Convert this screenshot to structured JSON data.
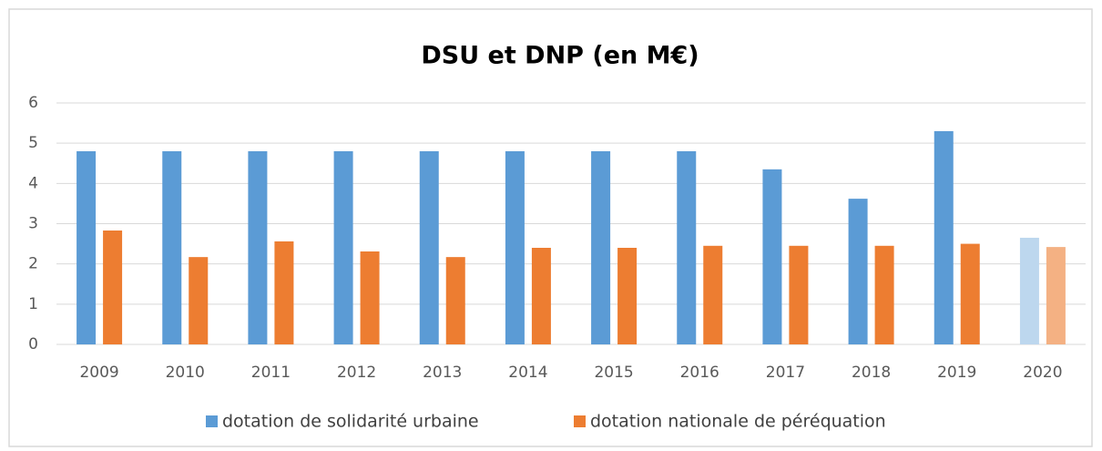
{
  "chart_data": {
    "type": "bar",
    "title": "DSU et DNP (en M€)",
    "categories": [
      "2009",
      "2010",
      "2011",
      "2012",
      "2013",
      "2014",
      "2015",
      "2016",
      "2017",
      "2018",
      "2019",
      "2020"
    ],
    "series": [
      {
        "name": "dotation de solidarité urbaine",
        "color": "#5b9bd5",
        "colors": [
          "#5b9bd5",
          "#5b9bd5",
          "#5b9bd5",
          "#5b9bd5",
          "#5b9bd5",
          "#5b9bd5",
          "#5b9bd5",
          "#5b9bd5",
          "#5b9bd5",
          "#5b9bd5",
          "#5b9bd5",
          "#bdd7ee"
        ],
        "values": [
          4.8,
          4.8,
          4.8,
          4.8,
          4.8,
          4.8,
          4.8,
          4.8,
          4.35,
          3.62,
          5.3,
          2.65
        ]
      },
      {
        "name": "dotation nationale de péréquation",
        "color": "#ed7d31",
        "colors": [
          "#ed7d31",
          "#ed7d31",
          "#ed7d31",
          "#ed7d31",
          "#ed7d31",
          "#ed7d31",
          "#ed7d31",
          "#ed7d31",
          "#ed7d31",
          "#ed7d31",
          "#ed7d31",
          "#f4b183"
        ],
        "values": [
          2.83,
          2.17,
          2.56,
          2.31,
          2.17,
          2.4,
          2.4,
          2.45,
          2.45,
          2.45,
          2.5,
          2.42
        ]
      }
    ],
    "ylim": [
      0,
      6
    ],
    "yticks": [
      0,
      1,
      2,
      3,
      4,
      5,
      6
    ],
    "grid": true,
    "legend": "bottom"
  }
}
